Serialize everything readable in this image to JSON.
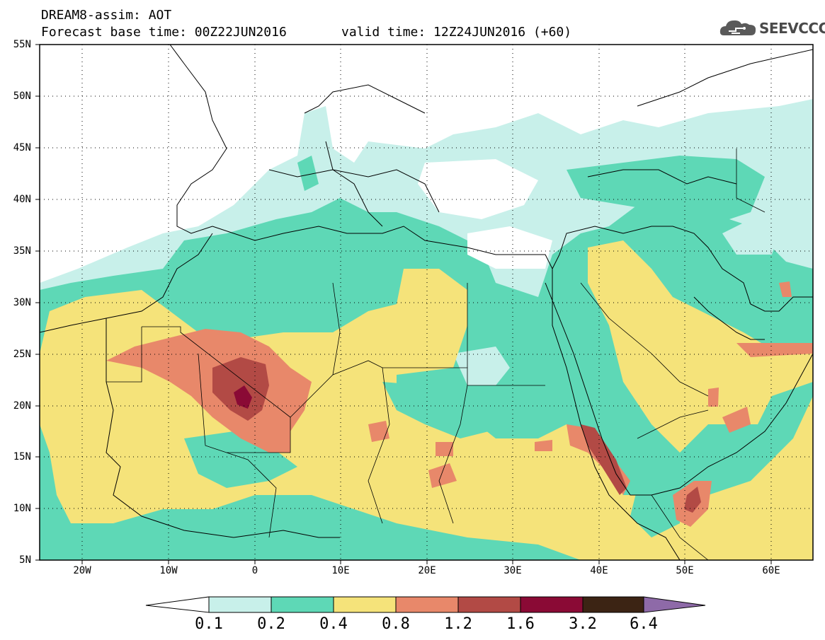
{
  "header": {
    "title": "DREAM8-assim: AOT",
    "base_time": "Forecast base time: 00Z22JUN2016",
    "valid_time": "valid time: 12Z24JUN2016 (+60)"
  },
  "logo": {
    "text": "SEEVCCC",
    "icon": "cloud-icon"
  },
  "map": {
    "lat_labels": [
      "55N",
      "50N",
      "45N",
      "40N",
      "35N",
      "30N",
      "25N",
      "20N",
      "15N",
      "10N",
      "5N"
    ],
    "lon_labels": [
      "20W",
      "10W",
      "0",
      "10E",
      "20E",
      "30E",
      "40E",
      "50E",
      "60E"
    ]
  },
  "legend": {
    "levels": [
      "0.1",
      "0.2",
      "0.4",
      "0.8",
      "1.2",
      "1.6",
      "3.2",
      "6.4"
    ],
    "colors": [
      "#ffffff",
      "#c8f0ea",
      "#5ed8b6",
      "#f5e37a",
      "#e8886a",
      "#b24a45",
      "#8a0a35",
      "#3c2414",
      "#8e6aa8"
    ]
  }
}
